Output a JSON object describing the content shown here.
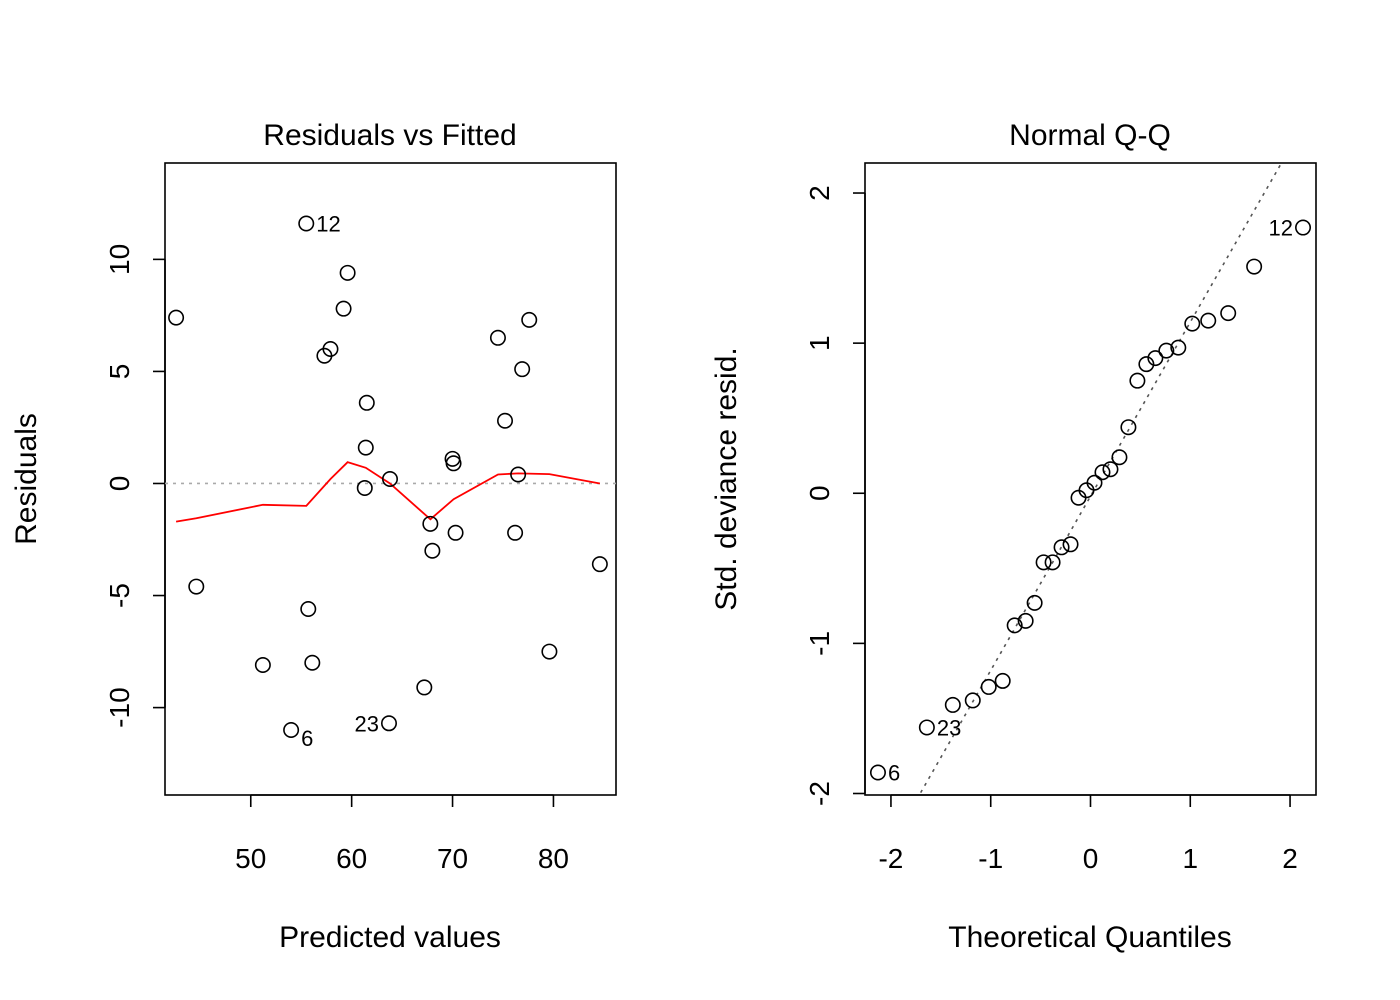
{
  "chart_data": [
    {
      "type": "scatter",
      "title": "Residuals vs Fitted",
      "xlabel": "Predicted values",
      "ylabel": "Residuals",
      "xlim": [
        41.5,
        86.2
      ],
      "ylim": [
        -13.9,
        14.3
      ],
      "xticks": [
        50,
        60,
        70,
        80
      ],
      "yticks": [
        -10,
        -5,
        0,
        5,
        10
      ],
      "reference_line": {
        "y": 0,
        "style": "dotted",
        "color": "#aaaaaa"
      },
      "smooth_color": "#ff0000",
      "points": [
        {
          "x": 42.6,
          "y": 7.4
        },
        {
          "x": 44.6,
          "y": -4.6
        },
        {
          "x": 51.2,
          "y": -8.1
        },
        {
          "x": 54.0,
          "y": -11.0,
          "label": "6"
        },
        {
          "x": 55.5,
          "y": 11.6,
          "label": "12"
        },
        {
          "x": 55.7,
          "y": -5.6
        },
        {
          "x": 56.1,
          "y": -8.0
        },
        {
          "x": 57.3,
          "y": 5.7
        },
        {
          "x": 57.9,
          "y": 6.0
        },
        {
          "x": 59.2,
          "y": 7.8
        },
        {
          "x": 59.6,
          "y": 9.4
        },
        {
          "x": 61.3,
          "y": -0.2
        },
        {
          "x": 61.4,
          "y": 1.6
        },
        {
          "x": 61.5,
          "y": 3.6
        },
        {
          "x": 63.7,
          "y": -10.7,
          "label": "23"
        },
        {
          "x": 63.8,
          "y": 0.2
        },
        {
          "x": 67.2,
          "y": -9.1
        },
        {
          "x": 67.8,
          "y": -1.8
        },
        {
          "x": 68.0,
          "y": -3.0
        },
        {
          "x": 70.0,
          "y": 1.1
        },
        {
          "x": 70.1,
          "y": 0.9
        },
        {
          "x": 70.3,
          "y": -2.2
        },
        {
          "x": 74.5,
          "y": 6.5
        },
        {
          "x": 75.2,
          "y": 2.8
        },
        {
          "x": 76.2,
          "y": -2.2
        },
        {
          "x": 76.5,
          "y": 0.4
        },
        {
          "x": 76.9,
          "y": 5.1
        },
        {
          "x": 77.6,
          "y": 7.3
        },
        {
          "x": 79.6,
          "y": -7.5
        },
        {
          "x": 84.6,
          "y": -3.6
        }
      ],
      "smooth": [
        {
          "x": 42.6,
          "y": -1.7
        },
        {
          "x": 44.6,
          "y": -1.55
        },
        {
          "x": 51.2,
          "y": -0.95
        },
        {
          "x": 55.5,
          "y": -1.0
        },
        {
          "x": 57.9,
          "y": 0.2
        },
        {
          "x": 59.6,
          "y": 0.95
        },
        {
          "x": 61.4,
          "y": 0.7
        },
        {
          "x": 63.8,
          "y": 0.0
        },
        {
          "x": 67.8,
          "y": -1.6
        },
        {
          "x": 70.1,
          "y": -0.7
        },
        {
          "x": 74.5,
          "y": 0.4
        },
        {
          "x": 76.5,
          "y": 0.45
        },
        {
          "x": 79.6,
          "y": 0.42
        },
        {
          "x": 84.6,
          "y": 0.0
        }
      ]
    },
    {
      "type": "scatter",
      "title": "Normal Q-Q",
      "xlabel": "Theoretical Quantiles",
      "ylabel": "Std. deviance resid.",
      "xlim": [
        -2.26,
        2.26
      ],
      "ylim": [
        -2.01,
        2.2
      ],
      "xticks": [
        -2,
        -1,
        0,
        1,
        2
      ],
      "yticks": [
        -2,
        -1,
        0,
        1,
        2
      ],
      "reference_line": {
        "slope": 1.16,
        "intercept": -0.02,
        "style": "dotted",
        "color": "#555555"
      },
      "points": [
        {
          "x": -2.13,
          "y": -1.86,
          "label": "6"
        },
        {
          "x": -1.64,
          "y": -1.56,
          "label": "23"
        },
        {
          "x": -1.38,
          "y": -1.41
        },
        {
          "x": -1.18,
          "y": -1.38
        },
        {
          "x": -1.02,
          "y": -1.29
        },
        {
          "x": -0.88,
          "y": -1.25
        },
        {
          "x": -0.76,
          "y": -0.88
        },
        {
          "x": -0.65,
          "y": -0.85
        },
        {
          "x": -0.56,
          "y": -0.73
        },
        {
          "x": -0.47,
          "y": -0.46
        },
        {
          "x": -0.38,
          "y": -0.46
        },
        {
          "x": -0.29,
          "y": -0.36
        },
        {
          "x": -0.2,
          "y": -0.34
        },
        {
          "x": -0.12,
          "y": -0.03
        },
        {
          "x": -0.04,
          "y": 0.02
        },
        {
          "x": 0.04,
          "y": 0.07
        },
        {
          "x": 0.12,
          "y": 0.14
        },
        {
          "x": 0.2,
          "y": 0.16
        },
        {
          "x": 0.29,
          "y": 0.24
        },
        {
          "x": 0.38,
          "y": 0.44
        },
        {
          "x": 0.47,
          "y": 0.75
        },
        {
          "x": 0.56,
          "y": 0.86
        },
        {
          "x": 0.65,
          "y": 0.9
        },
        {
          "x": 0.76,
          "y": 0.95
        },
        {
          "x": 0.88,
          "y": 0.97
        },
        {
          "x": 1.02,
          "y": 1.13
        },
        {
          "x": 1.18,
          "y": 1.15
        },
        {
          "x": 1.38,
          "y": 1.2
        },
        {
          "x": 1.64,
          "y": 1.51
        },
        {
          "x": 2.13,
          "y": 1.77,
          "label": "12"
        }
      ]
    }
  ]
}
